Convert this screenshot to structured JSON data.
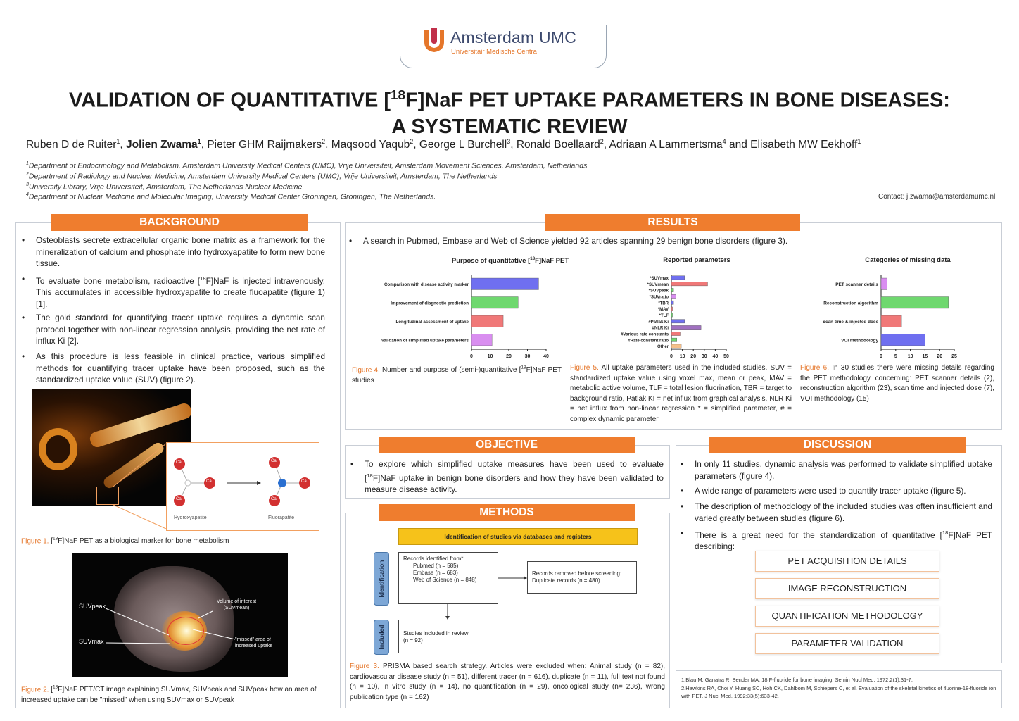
{
  "logo": {
    "name": "Amsterdam UMC",
    "subtitle": "Universitair Medische Centra",
    "icon": "amsterdam-umc-logo-icon"
  },
  "title": {
    "line1": "VALIDATION OF QUANTITATIVE [18F]NaF PET UPTAKE PARAMETERS IN BONE DISEASES:",
    "line2": "A SYSTEMATIC REVIEW"
  },
  "authors": {
    "a1": "Ruben D de Ruiter",
    "a1_sup": "1",
    "a2": "Jolien Zwama",
    "a2_sup": "1",
    "a3": "Pieter GHM Raijmakers",
    "a3_sup": "2",
    "a4": "Maqsood Yaqub",
    "a4_sup": "2",
    "a5": "George L Burchell",
    "a5_sup": "3",
    "a6": "Ronald Boellaard",
    "a6_sup": "2",
    "a7": "Adriaan A Lammertsma",
    "a7_sup": "4",
    "a8": "Elisabeth MW Eekhoff",
    "a8_sup": "1",
    "sep": ", ",
    "and": " and "
  },
  "affiliations": [
    {
      "num": "1",
      "text": "Department of Endocrinology and Metabolism, Amsterdam University Medical Centers (UMC), Vrije Universiteit, Amsterdam Movement Sciences, Amsterdam, Netherlands"
    },
    {
      "num": "2",
      "text": "Department of Radiology and Nuclear Medicine, Amsterdam University Medical Centers (UMC), Vrije Universiteit, Amsterdam, The Netherlands"
    },
    {
      "num": "3",
      "text": "University Library, Vrije Universiteit, Amsterdam, The Netherlands Nuclear Medicine"
    },
    {
      "num": "4",
      "text": "Department of Nuclear Medicine and Molecular Imaging, University Medical Center Groningen, Groningen, The Netherlands."
    }
  ],
  "contact": "Contact: j.zwama@amsterdamumc.nl",
  "background": {
    "header": "BACKGROUND",
    "b1": "Osteoblasts secrete extracellular organic bone matrix as a framework for the mineralization of calcium and phosphate into hydroxyapatite to form new bone tissue.",
    "b2": "To evaluate bone metabolism, radioactive [18F]NaF is injected intravenously. This accumulates in accessible hydroxyapatite to create fluoapatite (figure 1) [1].",
    "b3": "The gold standard for quantifying tracer uptake requires a dynamic scan protocol together with non-linear regression analysis, providing the net rate of influx Ki [2].",
    "b4": "As this procedure is less feasible in clinical practice, various simplified methods for quantifying tracer uptake have been proposed, such as the standardized uptake value (SUV) (figure 2).",
    "fig1_label_a": "Hydroxyapatite",
    "fig1_label_b": "Fluorapatite",
    "ca": "Ca",
    "fig1_caption_label": "Figure 1.",
    "fig1_caption": " [18F]NaF PET as a biological marker for bone metabolism",
    "fig2_labels": {
      "suvpeak": "SUVpeak",
      "suvmax": "SUVmax",
      "voi": "Volume of interest (SUVmean)",
      "missed": "\"missed\" area of increased uptake"
    },
    "fig2_caption_label": "Figure 2.",
    "fig2_caption": " [18F]NaF PET/CT image explaining SUVmax, SUVpeak and SUVpeak how an area of increased uptake can be \"missed\" when using SUVmax or SUVpeak"
  },
  "results": {
    "header": "RESULTS",
    "b1": "A search in Pubmed, Embase and Web of Science yielded 92 articles spanning 29 benign bone disorders (figure 3).",
    "fig4_caption_label": "Figure 4.",
    "fig4_caption": " Number and purpose of (semi-)quantitative [18F]NaF PET studies",
    "fig5_caption_label": "Figure 5.",
    "fig5_caption": " All uptake parameters used in the included studies. SUV = standardized uptake value using voxel max, mean or peak, MAV = metabolic active volume, TLF = total lesion fluorination, TBR = target to background ratio, Patlak KI = net influx from graphical analysis, NLR Ki = net influx from non-linear regression * = simplified parameter, # = complex dynamic parameter",
    "fig6_caption_label": "Figure 6.",
    "fig6_caption": " In 30 studies there were missing details regarding the PET methodology, concerning: PET scanner details (2), reconstruction algorithm (23), scan time and injected dose (7), VOI methodology (15)"
  },
  "chart_data": [
    {
      "type": "bar",
      "orientation": "horizontal",
      "title": "Purpose of quantitative [18F]NaF PET",
      "categories": [
        "Comparison with disease activity marker",
        "Improvement of diagnostic prediction",
        "Longitudinal assessment of uptake",
        "Validation of simplified uptake parameters"
      ],
      "values": [
        36,
        25,
        17,
        11
      ],
      "colors": [
        "#6f6ff0",
        "#6fd86f",
        "#f07878",
        "#d98ef0"
      ],
      "xticks": [
        "0",
        "10",
        "20",
        "30",
        "40"
      ],
      "xlim": [
        0,
        40
      ]
    },
    {
      "type": "bar",
      "orientation": "horizontal",
      "title": "Reported parameters",
      "categories": [
        "*SUVmax",
        "*SUVmean",
        "*SUVpeak",
        "*SUVratio",
        "*TBR",
        "*MAV",
        "*TLF",
        "#Patlak Ki",
        "#NLR Ki",
        "#Various rate constants",
        "#Rate constant ratio",
        "Other"
      ],
      "values": [
        12,
        33,
        2,
        4,
        2,
        1,
        1,
        12,
        27,
        8,
        5,
        9
      ],
      "colors": [
        "#6f6ff0",
        "#f07878",
        "#6fd86f",
        "#d98ef0",
        "#6f6ff0",
        "#f07878",
        "#6fd86f",
        "#6f6ff0",
        "#a070c0",
        "#f07878",
        "#6fd86f",
        "#f5c08a"
      ],
      "xticks": [
        "0",
        "10",
        "20",
        "30",
        "40",
        "50"
      ],
      "xlim": [
        0,
        50
      ]
    },
    {
      "type": "bar",
      "orientation": "horizontal",
      "title": "Categories of missing data",
      "categories": [
        "PET scanner details",
        "Reconstruction algorithm",
        "Scan time & injected dose",
        "VOI methodology"
      ],
      "values": [
        2,
        23,
        7,
        15
      ],
      "colors": [
        "#d98ef0",
        "#6fd86f",
        "#f07878",
        "#6f6ff0"
      ],
      "xticks": [
        "0",
        "5",
        "10",
        "15",
        "20",
        "25"
      ],
      "xlim": [
        0,
        25
      ]
    }
  ],
  "objective": {
    "header": "OBJECTIVE",
    "b1": "To explore which simplified uptake measures have been used to evaluate [18F]NaF uptake in benign bone disorders and how they have been validated to measure disease activity."
  },
  "methods": {
    "header": "METHODS",
    "id_banner": "Identification of studies via databases and registers",
    "side_identification": "Identification",
    "side_included": "Included",
    "box1": [
      "Records identified from*:",
      "Pubmed (n = 585)",
      "Embase (n = 683)",
      "Web of Science (n = 848)"
    ],
    "box2": [
      "Records removed before screening:",
      "Duplicate records (n = 480)"
    ],
    "box3": [
      "Studies included in review",
      "(n = 92)"
    ],
    "fig3_caption_label": "Figure 3.",
    "fig3_caption": " PRISMA based search strategy. Articles were excluded when: Animal study (n = 82), cardiovascular disease study (n = 51), different tracer (n = 616), duplicate (n = 11), full text not found (n = 10), in vitro study (n = 14), no quantification (n = 29), oncological study (n= 236), wrong publication type (n = 162)"
  },
  "discussion": {
    "header": "DISCUSSION",
    "b1": "In only 11 studies, dynamic analysis was performed to validate simplified uptake parameters (figure 4).",
    "b2": "A wide range of parameters were used to quantify tracer uptake (figure 5).",
    "b3": "The description of methodology of the included studies was often insufficient and varied greatly between studies (figure 6).",
    "b4": "There is a great need for the standardization of quantitative [18F]NaF PET describing:",
    "items": [
      "PET ACQUISITION DETAILS",
      "IMAGE RECONSTRUCTION",
      "QUANTIFICATION METHODOLOGY",
      "PARAMETER VALIDATION"
    ]
  },
  "references": {
    "r1": "1.Blau M, Ganatra R, Bender MA. 18 F-fluoride for bone imaging. Semin Nucl Med. 1972;2(1):31-7.",
    "r2": "2.Hawkins RA, Choi Y, Huang SC, Hoh CK, Dahlbom M, Schiepers C, et al. Evaluation of the skeletal kinetics of fluorine-18-fluoride ion with PET. J Nucl Med. 1992;33(5):633-42."
  },
  "colors": {
    "accent": "#ef7d2e",
    "logo_blue": "#3d4a6e",
    "border": "#c9ced6"
  }
}
